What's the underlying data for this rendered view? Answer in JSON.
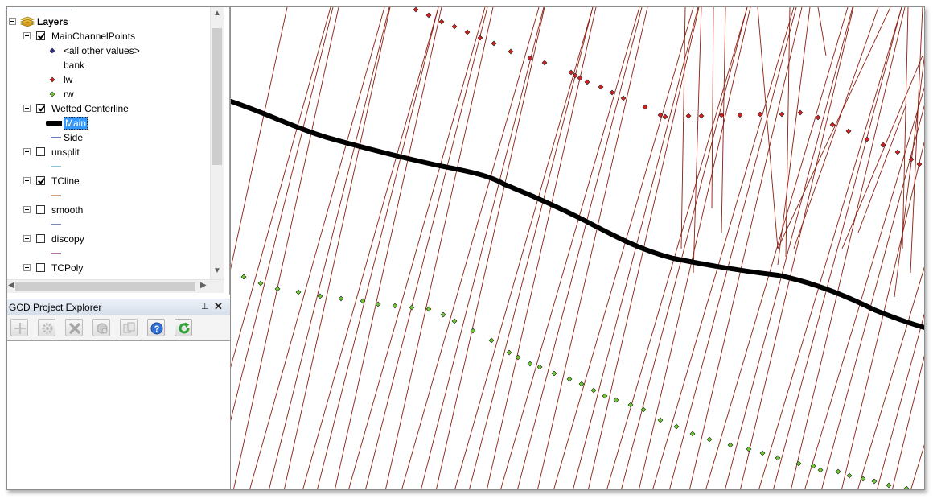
{
  "toc": {
    "root_label": "Layers",
    "layers": [
      {
        "name": "MainChannelPoints",
        "checked": true,
        "legend": [
          {
            "label": "<all other values>",
            "symbol": "diamond",
            "color": "#2e2e8a"
          },
          {
            "label": "bank",
            "symbol": "none",
            "color": ""
          },
          {
            "label": "lw",
            "symbol": "diamond",
            "color": "#d62020"
          },
          {
            "label": "rw",
            "symbol": "diamond",
            "color": "#6ec831"
          }
        ]
      },
      {
        "name": "Wetted Centerline",
        "checked": true,
        "legend": [
          {
            "label": "Main",
            "symbol": "thick-line",
            "color": "#000000",
            "selected": true
          },
          {
            "label": "Side",
            "symbol": "line",
            "color": "#1f2a9c"
          }
        ]
      },
      {
        "name": "unsplit",
        "checked": false,
        "legend": [
          {
            "label": "",
            "symbol": "line",
            "color": "#4ba3c7"
          }
        ]
      },
      {
        "name": "TCline",
        "checked": true,
        "legend": [
          {
            "label": "",
            "symbol": "line",
            "color": "#b86a3a"
          }
        ]
      },
      {
        "name": "smooth",
        "checked": false,
        "legend": [
          {
            "label": "",
            "symbol": "line",
            "color": "#3a4aa0"
          }
        ]
      },
      {
        "name": "discopy",
        "checked": false,
        "legend": [
          {
            "label": "",
            "symbol": "line",
            "color": "#8a2a6a"
          }
        ]
      },
      {
        "name": "TCPoly",
        "checked": false,
        "legend": [
          {
            "label": "",
            "symbol": "line",
            "color": "#8a8a8a"
          }
        ]
      }
    ]
  },
  "gcd": {
    "title": "GCD Project Explorer",
    "toolbar": [
      {
        "name": "add-button",
        "icon": "plus-icon",
        "enabled": false
      },
      {
        "name": "properties-button",
        "icon": "gear-icon",
        "enabled": false
      },
      {
        "name": "delete-button",
        "icon": "x-icon",
        "enabled": false
      },
      {
        "name": "add-raster-button",
        "icon": "globe-icon",
        "enabled": false
      },
      {
        "name": "copy-button",
        "icon": "copy-icon",
        "enabled": false
      },
      {
        "name": "help-button",
        "icon": "help-icon",
        "enabled": true
      },
      {
        "name": "refresh-button",
        "icon": "refresh-icon",
        "enabled": true
      }
    ]
  },
  "map": {
    "transect_color": "#8b1e10",
    "centerline_color": "#000000",
    "lw_color": "#d62020",
    "rw_color": "#6ec831"
  }
}
